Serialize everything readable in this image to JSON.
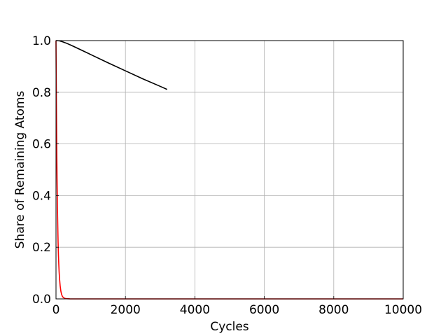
{
  "chart_data": {
    "type": "line",
    "title": "",
    "xlabel": "Cycles",
    "ylabel": "Share of Remaining Atoms",
    "xlim": [
      0,
      10000
    ],
    "ylim": [
      0,
      1.0
    ],
    "xticks": [
      0,
      2000,
      4000,
      6000,
      8000,
      10000
    ],
    "xtick_labels": [
      "0",
      "2000",
      "4000",
      "6000",
      "8000",
      "10000"
    ],
    "yticks": [
      0.0,
      0.2,
      0.4,
      0.6,
      0.8,
      1.0
    ],
    "ytick_labels": [
      "0.0",
      "0.2",
      "0.4",
      "0.6",
      "0.8",
      "1.0"
    ],
    "grid": true,
    "series": [
      {
        "color": "#000000",
        "x": [
          0,
          100,
          200,
          300,
          400,
          500,
          750,
          1000,
          1500,
          2000,
          2500,
          3000,
          3200
        ],
        "y": [
          1.0,
          0.999,
          0.995,
          0.99,
          0.984,
          0.978,
          0.962,
          0.946,
          0.914,
          0.883,
          0.852,
          0.823,
          0.811
        ]
      },
      {
        "color": "#ff0000",
        "x": [
          0,
          10,
          20,
          30,
          40,
          50,
          60,
          70,
          80,
          90,
          100,
          120,
          140,
          160,
          180,
          200,
          250,
          300,
          400,
          600,
          1000,
          2000,
          4000,
          6000,
          8000,
          10000
        ],
        "y": [
          1.0,
          0.78,
          0.61,
          0.47,
          0.37,
          0.29,
          0.22,
          0.17,
          0.135,
          0.105,
          0.082,
          0.05,
          0.03,
          0.018,
          0.011,
          0.007,
          0.002,
          0.0008,
          0.0001,
          0.0,
          0.0,
          0.0,
          0.0,
          0.0,
          0.0,
          0.0
        ]
      }
    ]
  }
}
